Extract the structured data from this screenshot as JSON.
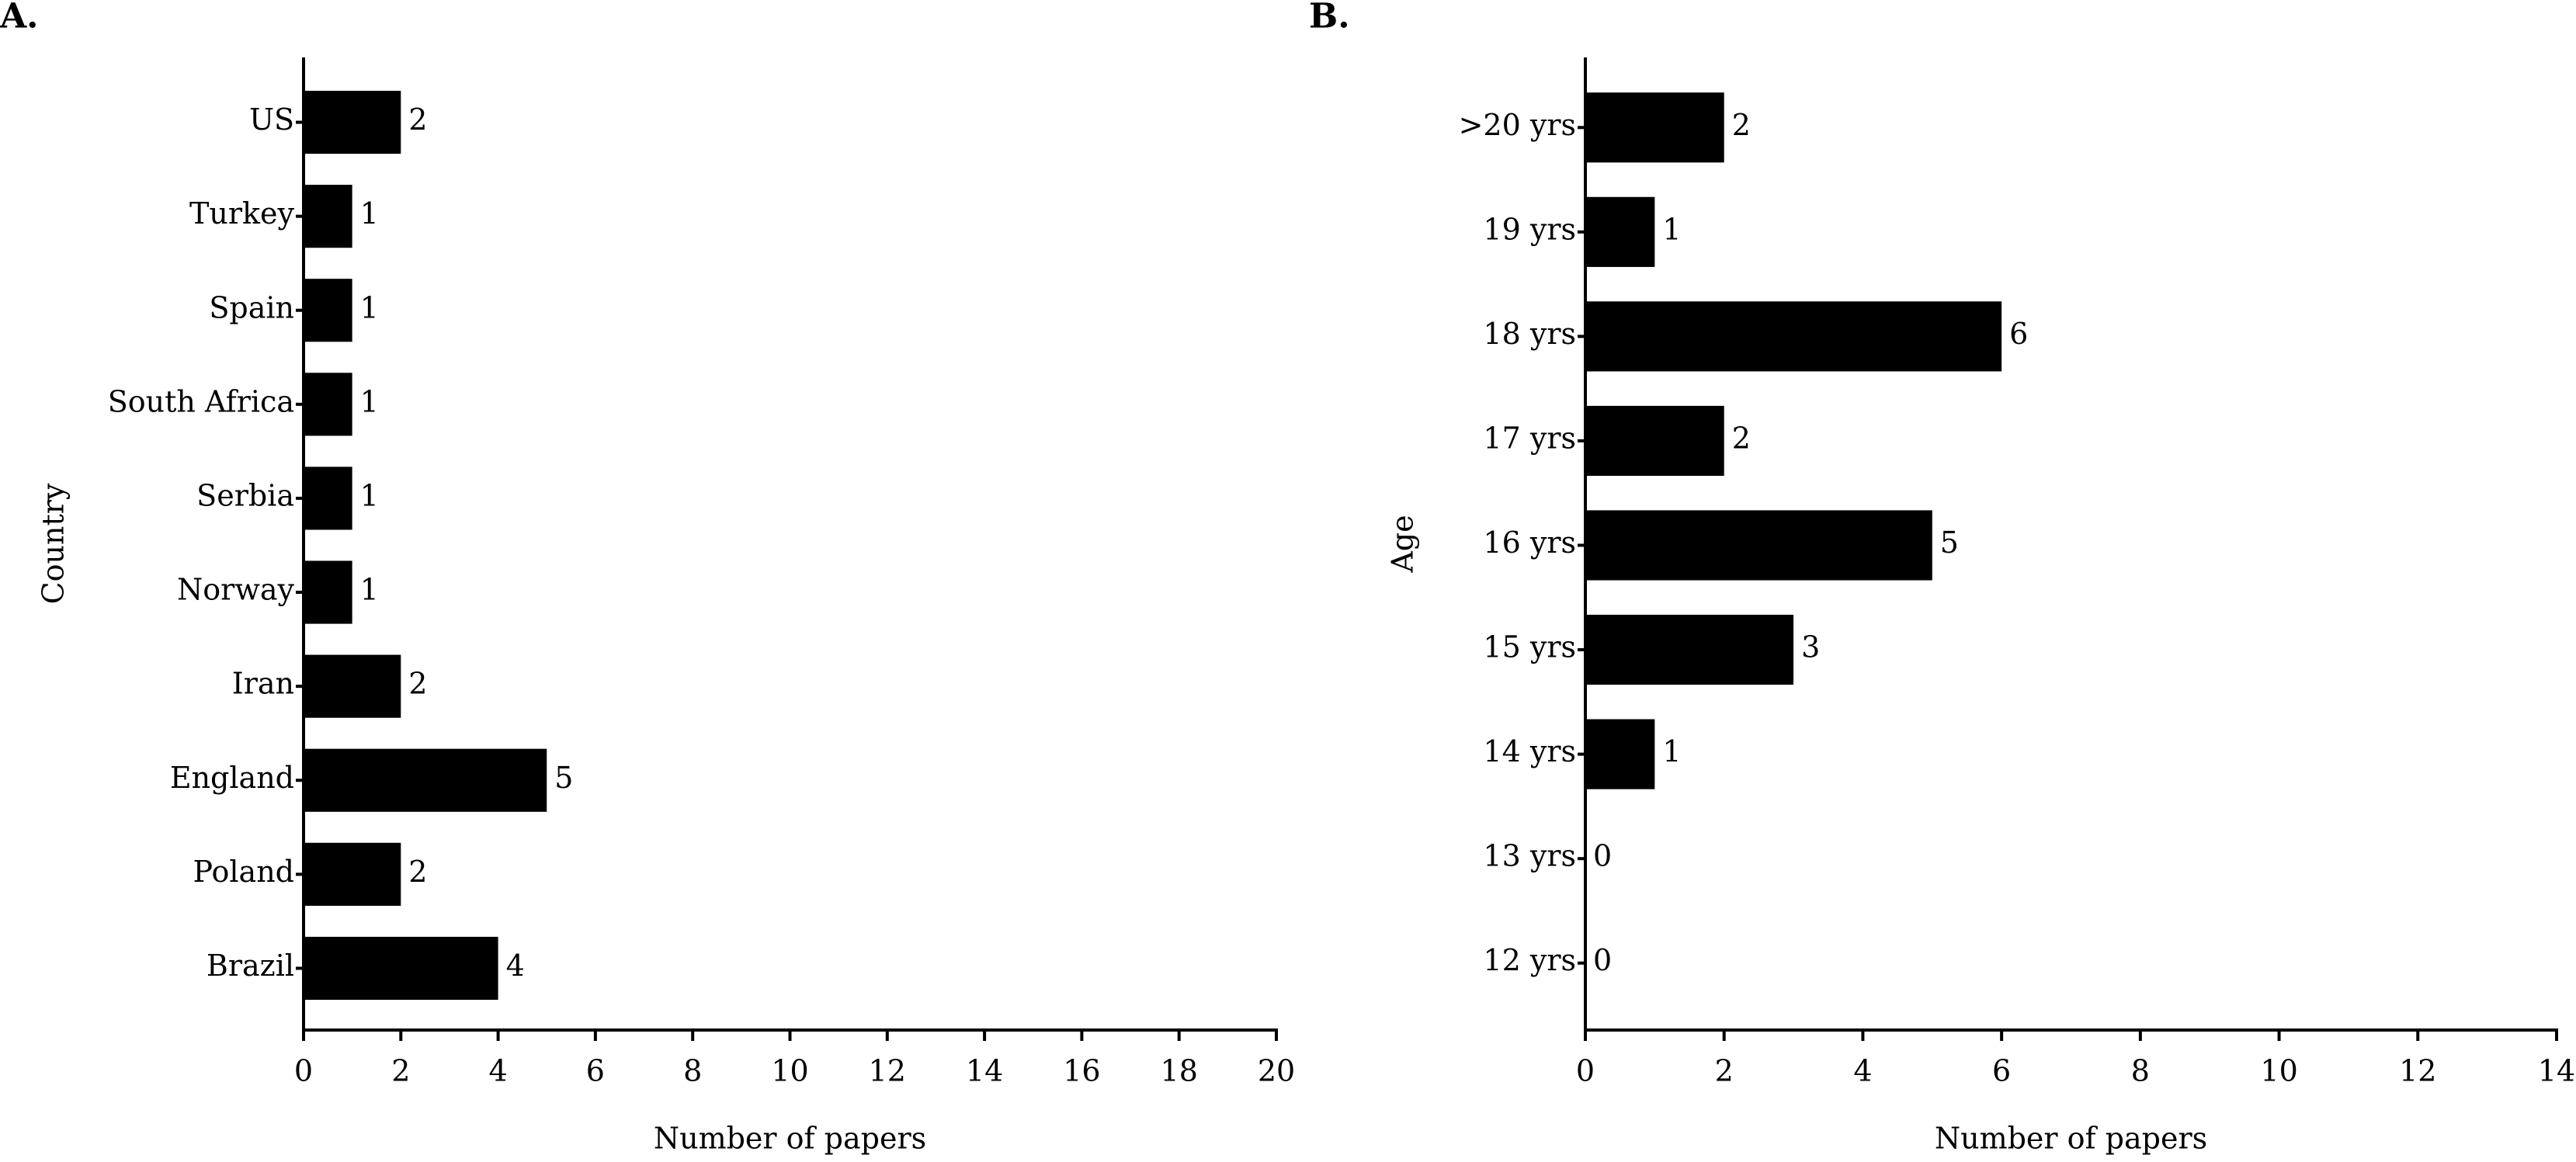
{
  "chart_data": [
    {
      "type": "barh",
      "label": "A.",
      "xlabel": "Number of papers",
      "ylabel": "Country",
      "categories": [
        "US",
        "Turkey",
        "Spain",
        "South Africa",
        "Serbia",
        "Norway",
        "Iran",
        "England",
        "Poland",
        "Brazil"
      ],
      "values": [
        2,
        1,
        1,
        1,
        1,
        1,
        2,
        5,
        2,
        4
      ],
      "color": "#000000",
      "xlim": [
        0,
        20
      ],
      "xticks": [
        0,
        2,
        4,
        6,
        8,
        10,
        12,
        14,
        16,
        18,
        20
      ]
    },
    {
      "type": "barh",
      "label": "B.",
      "xlabel": "Number of papers",
      "ylabel": "Age",
      "categories": [
        ">20 yrs",
        "19 yrs",
        "18 yrs",
        "17 yrs",
        "16 yrs",
        "15 yrs",
        "14 yrs",
        "13 yrs",
        "12 yrs"
      ],
      "values": [
        2,
        1,
        6,
        2,
        5,
        3,
        1,
        0,
        0
      ],
      "color": "#000000",
      "xlim": [
        0,
        14
      ],
      "xticks": [
        0,
        2,
        4,
        6,
        8,
        10,
        12,
        14
      ]
    }
  ]
}
